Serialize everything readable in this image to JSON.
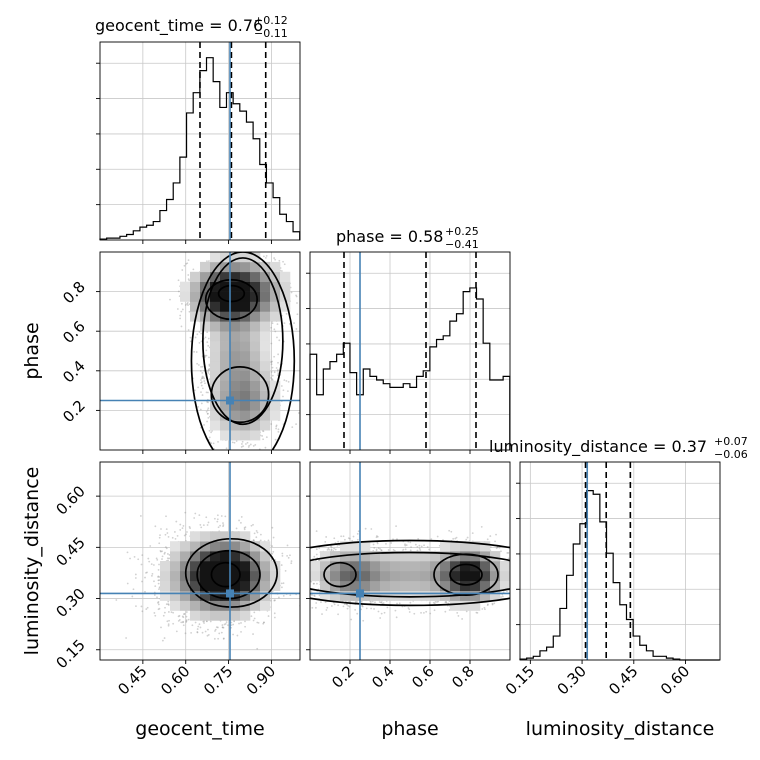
{
  "chart_data": {
    "type": "corner",
    "parameters": [
      "geocent_time",
      "phase",
      "luminosity_distance"
    ],
    "titles": [
      {
        "param": "geocent_time",
        "prefix": "geocent_time = 0.76",
        "plus": "+0.12",
        "minus": "−0.11"
      },
      {
        "param": "phase",
        "prefix": "phase = 0.58",
        "plus": "+0.25",
        "minus": "−0.41"
      },
      {
        "param": "luminosity_distance",
        "prefix": "luminosity_distance = 0.37",
        "plus": "+0.07",
        "minus": "−0.06"
      }
    ],
    "axes": {
      "geocent_time": {
        "range": [
          0.3,
          1.0
        ],
        "ticks": [
          0.45,
          0.6,
          0.75,
          0.9
        ],
        "tick_labels": [
          "0.45",
          "0.60",
          "0.75",
          "0.90"
        ],
        "label": "geocent_time"
      },
      "phase": {
        "range": [
          0.0,
          1.0
        ],
        "ticks": [
          0.2,
          0.4,
          0.6,
          0.8
        ],
        "tick_labels": [
          "0.2",
          "0.4",
          "0.6",
          "0.8"
        ],
        "label": "phase"
      },
      "luminosity_distance": {
        "range": [
          0.12,
          0.7
        ],
        "ticks": [
          0.15,
          0.3,
          0.45,
          0.6
        ],
        "tick_labels": [
          "0.15",
          "0.30",
          "0.45",
          "0.60"
        ],
        "label": "luminosity_distance"
      }
    },
    "injection": {
      "geocent_time": 0.755,
      "phase": 0.25,
      "luminosity_distance": 0.315
    },
    "quantiles": {
      "geocent_time": [
        0.65,
        0.76,
        0.88
      ],
      "phase": [
        0.17,
        0.58,
        0.83
      ],
      "luminosity_distance": [
        0.31,
        0.37,
        0.44
      ]
    },
    "histograms": {
      "geocent_time": {
        "edges_start": 0.3,
        "bin_width": 0.0233,
        "counts": [
          0.005,
          0.01,
          0.01,
          0.02,
          0.03,
          0.05,
          0.07,
          0.08,
          0.1,
          0.16,
          0.22,
          0.31,
          0.45,
          0.69,
          0.8,
          0.92,
          0.99,
          0.86,
          0.72,
          0.8,
          0.74,
          0.7,
          0.64,
          0.55,
          0.41,
          0.31,
          0.23,
          0.14,
          0.1,
          0.045
        ]
      },
      "phase": {
        "edges_start": 0.0,
        "bin_width": 0.0333,
        "counts": [
          0.52,
          0.3,
          0.44,
          0.48,
          0.52,
          0.58,
          0.42,
          0.3,
          0.44,
          0.4,
          0.38,
          0.36,
          0.34,
          0.34,
          0.36,
          0.34,
          0.4,
          0.43,
          0.56,
          0.6,
          0.62,
          0.7,
          0.74,
          0.86,
          0.88,
          0.82,
          0.58,
          0.38,
          0.38,
          0.4
        ]
      },
      "luminosity_distance": {
        "edges_start": 0.12,
        "bin_width": 0.0193,
        "counts": [
          0.005,
          0.01,
          0.02,
          0.05,
          0.07,
          0.13,
          0.28,
          0.46,
          0.63,
          0.74,
          0.92,
          0.9,
          0.75,
          0.58,
          0.42,
          0.3,
          0.22,
          0.13,
          0.08,
          0.05,
          0.02,
          0.02,
          0.01,
          0.005,
          0.0,
          0.0,
          0.0,
          0.0,
          0.0,
          0.0
        ]
      }
    },
    "grid": true,
    "injection_color": "#4682b4",
    "contour_color": "#000000"
  }
}
